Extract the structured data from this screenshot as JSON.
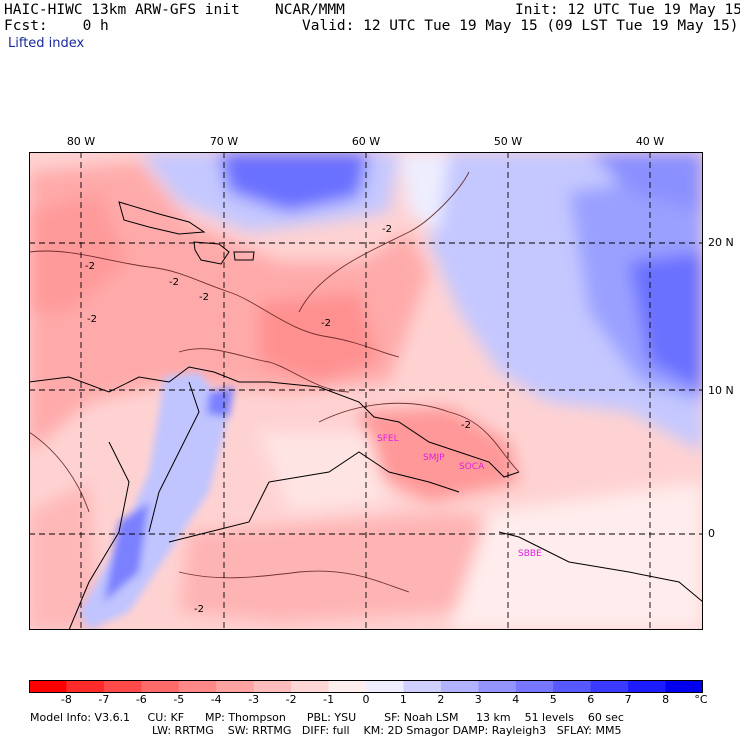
{
  "header": {
    "model": "HAIC-HIWC 13km ARW-GFS init",
    "org": "NCAR/MMM",
    "init": "Init: 12 UTC Tue 19 May 15",
    "fcst": "Fcst:    0 h",
    "valid": "Valid: 12 UTC Tue 19 May 15 (09 LST Tue 19 May 15)",
    "field": "Lifted index"
  },
  "map": {
    "lon_labels": [
      "80 W",
      "70 W",
      "60 W",
      "50 W",
      "40 W"
    ],
    "lat_labels": [
      "20 N",
      "10 N",
      "0"
    ],
    "contour_labels": [
      "-2",
      "-2",
      "-2",
      "-2",
      "-2",
      "-2",
      "-2",
      "-2"
    ],
    "stations": [
      "SFEL",
      "SMJP",
      "SOCA",
      "SBBE"
    ],
    "station_color": "#e020e0"
  },
  "colorbar": {
    "labels": [
      "-8",
      "-7",
      "-6",
      "-5",
      "-4",
      "-3",
      "-2",
      "-1",
      "0",
      "1",
      "2",
      "3",
      "4",
      "5",
      "6",
      "7",
      "8"
    ],
    "unit": "°C",
    "colors": [
      "#ff0000",
      "#ff2a2a",
      "#ff4a4a",
      "#ff6a6a",
      "#ff8888",
      "#ffa2a2",
      "#ffbcbc",
      "#ffd6d6",
      "#ffeeee",
      "#eeeeff",
      "#d0d0ff",
      "#b2b2ff",
      "#9494ff",
      "#7676ff",
      "#5858ff",
      "#3a3aff",
      "#1c1cff",
      "#0000ee"
    ]
  },
  "model_info": {
    "line1": "Model Info: V3.6.1     CU: KF      MP: Thompson      PBL: YSU        SF: Noah LSM     13 km    51 levels    60 sec",
    "line2": "LW: RRTMG    SW: RRTMG   DIFF: full    KM: 2D Smagor DAMP: Rayleigh3   SFLAY: MM5"
  }
}
